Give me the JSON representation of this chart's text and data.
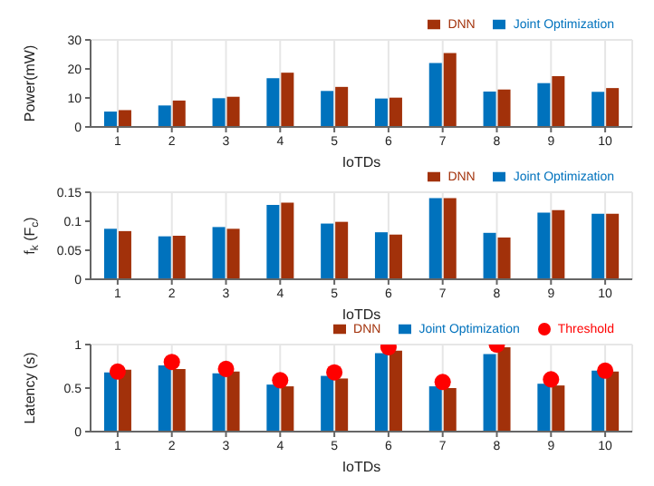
{
  "chart_data": [
    {
      "type": "bar",
      "xlabel": "IoTDs",
      "ylabel": "Power(mW)",
      "categories": [
        "1",
        "2",
        "3",
        "4",
        "5",
        "6",
        "7",
        "8",
        "9",
        "10"
      ],
      "ylim": [
        0,
        30
      ],
      "yticks": [
        0,
        10,
        20,
        30
      ],
      "grid": true,
      "legend": "top right",
      "series": [
        {
          "name": "Joint Optimization",
          "color": "#0072bd",
          "values": [
            5.3,
            7.4,
            9.9,
            16.8,
            12.4,
            9.8,
            22,
            12.2,
            15.1,
            12.1
          ]
        },
        {
          "name": "DNN",
          "color": "#a2310a",
          "values": [
            5.8,
            9.1,
            10.4,
            18.7,
            13.8,
            10.1,
            25.5,
            12.9,
            17.5,
            13.4
          ]
        }
      ]
    },
    {
      "type": "bar",
      "xlabel": "IoTDs",
      "ylabel": "f$_{k}$ (F$_{c}$)",
      "categories": [
        "1",
        "2",
        "3",
        "4",
        "5",
        "6",
        "7",
        "8",
        "9",
        "10"
      ],
      "ylim": [
        0,
        0.15
      ],
      "yticks": [
        0,
        0.05,
        0.1,
        0.15
      ],
      "grid": true,
      "legend": "top right",
      "series": [
        {
          "name": "Joint Optimization",
          "color": "#0072bd",
          "values": [
            0.087,
            0.074,
            0.09,
            0.128,
            0.096,
            0.081,
            0.14,
            0.08,
            0.115,
            0.113
          ]
        },
        {
          "name": "DNN",
          "color": "#a2310a",
          "values": [
            0.083,
            0.075,
            0.087,
            0.132,
            0.099,
            0.077,
            0.14,
            0.072,
            0.119,
            0.113
          ]
        }
      ]
    },
    {
      "type": "bar",
      "xlabel": "IoTDs",
      "ylabel": "Latency (s)",
      "categories": [
        "1",
        "2",
        "3",
        "4",
        "5",
        "6",
        "7",
        "8",
        "9",
        "10"
      ],
      "ylim": [
        0,
        1
      ],
      "yticks": [
        0,
        0.5,
        1
      ],
      "grid": true,
      "legend": "top right",
      "series": [
        {
          "name": "Joint Optimization",
          "color": "#0072bd",
          "values": [
            0.68,
            0.76,
            0.67,
            0.54,
            0.64,
            0.9,
            0.52,
            0.89,
            0.55,
            0.7
          ]
        },
        {
          "name": "DNN",
          "color": "#a2310a",
          "values": [
            0.71,
            0.72,
            0.69,
            0.52,
            0.61,
            0.93,
            0.5,
            0.97,
            0.53,
            0.69
          ]
        },
        {
          "name": "Threshold",
          "type": "scatter",
          "marker": "circle",
          "color": "#ff0000",
          "values": [
            0.69,
            0.8,
            0.72,
            0.59,
            0.68,
            0.97,
            0.57,
            1.0,
            0.6,
            0.7
          ]
        }
      ]
    }
  ]
}
